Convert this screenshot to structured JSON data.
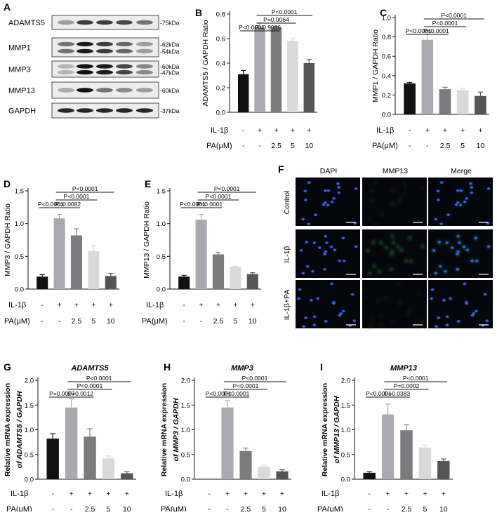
{
  "treatment_rows": {
    "il1b_label": "IL-1β",
    "pa_label": "PA(μM)",
    "il1b_values": [
      "-",
      "+",
      "+",
      "+",
      "+"
    ],
    "pa_values": [
      "-",
      "-",
      "2.5",
      "5",
      "10"
    ]
  },
  "bar_colors": [
    "#111111",
    "#a9aab0",
    "#7b7b7d",
    "#d9d9d9",
    "#555555"
  ],
  "panel_A": {
    "letter": "A",
    "rows": [
      {
        "name": "ADAMTS5",
        "kda": [
          "-75kDa"
        ]
      },
      {
        "name": "MMP1",
        "kda": [
          "-62kDa",
          "-54kDa"
        ]
      },
      {
        "name": "MMP3",
        "kda": [
          "-60kDa",
          "-47kDa"
        ]
      },
      {
        "name": "MMP13",
        "kda": [
          "-60kDa"
        ]
      },
      {
        "name": "GAPDH",
        "kda": [
          "-37kDa"
        ]
      }
    ]
  },
  "panel_F": {
    "letter": "F",
    "columns": [
      "DAPI",
      "MMP13",
      "Merge"
    ],
    "rows": [
      "Control",
      "IL-1β",
      "IL-1β+PA"
    ]
  },
  "chart_data": [
    {
      "id": "B",
      "type": "bar",
      "letter": "B",
      "title": "",
      "ylabel": "ADAMTS5 / GAPDH Ratio",
      "ylim": [
        0,
        0.8
      ],
      "yticks": [
        "0.0",
        "0.2",
        "0.4",
        "0.6",
        "0.8"
      ],
      "values": [
        0.31,
        0.69,
        0.69,
        0.58,
        0.4
      ],
      "errors": [
        0.03,
        0.04,
        0.01,
        0.02,
        0.03
      ],
      "comparisons": [
        {
          "label": "P<0.0001",
          "from": 0,
          "to": 1
        },
        {
          "label": "P=0.9986",
          "from": 1,
          "to": 2
        },
        {
          "label": "P=0.0064",
          "from": 1,
          "to": 3
        },
        {
          "label": "P<0.0001",
          "from": 1,
          "to": 4
        }
      ]
    },
    {
      "id": "C",
      "type": "bar",
      "letter": "C",
      "title": "",
      "ylabel": "MMP1 / GAPDH Ratio",
      "ylim": [
        0,
        1.0
      ],
      "yticks": [
        "0.0",
        "0.2",
        "0.4",
        "0.6",
        "0.8",
        "1.0"
      ],
      "values": [
        0.32,
        0.77,
        0.26,
        0.25,
        0.19
      ],
      "errors": [
        0.01,
        0.06,
        0.02,
        0.02,
        0.04
      ],
      "comparisons": [
        {
          "label": "P<0.0001",
          "from": 0,
          "to": 1
        },
        {
          "label": "P<0.0001",
          "from": 1,
          "to": 2
        },
        {
          "label": "P<0.0001",
          "from": 1,
          "to": 3
        },
        {
          "label": "P<0.0001",
          "from": 1,
          "to": 4
        }
      ]
    },
    {
      "id": "D",
      "type": "bar",
      "letter": "D",
      "title": "",
      "ylabel": "MMP3 / GAPDH Ratio",
      "ylim": [
        0,
        1.5
      ],
      "yticks": [
        "0.0",
        "0.5",
        "1.0",
        "1.5"
      ],
      "values": [
        0.19,
        1.08,
        0.82,
        0.58,
        0.2
      ],
      "errors": [
        0.03,
        0.06,
        0.1,
        0.08,
        0.04
      ],
      "comparisons": [
        {
          "label": "P<0.0001",
          "from": 0,
          "to": 1
        },
        {
          "label": "P=0.0082",
          "from": 1,
          "to": 2
        },
        {
          "label": "P<0.0001",
          "from": 1,
          "to": 3
        },
        {
          "label": "P<0.0001",
          "from": 1,
          "to": 4
        }
      ]
    },
    {
      "id": "E",
      "type": "bar",
      "letter": "E",
      "title": "",
      "ylabel": "MMP13 / GAPDH Ratio",
      "ylim": [
        0,
        1.5
      ],
      "yticks": [
        "0.0",
        "0.5",
        "1.0",
        "1.5"
      ],
      "values": [
        0.19,
        1.06,
        0.53,
        0.34,
        0.23
      ],
      "errors": [
        0.02,
        0.08,
        0.03,
        0.01,
        0.02
      ],
      "comparisons": [
        {
          "label": "P<0.0001",
          "from": 0,
          "to": 1
        },
        {
          "label": "P<0.0001",
          "from": 1,
          "to": 2
        },
        {
          "label": "P<0.0001",
          "from": 1,
          "to": 3
        },
        {
          "label": "P<0.0001",
          "from": 1,
          "to": 4
        }
      ]
    },
    {
      "id": "G",
      "type": "bar",
      "letter": "G",
      "title": "ADAMTS5",
      "ylabel": [
        "Relative mRNA expression",
        "of ADAMTS5 / GAPDH"
      ],
      "ylim": [
        0,
        2.0
      ],
      "yticks": [
        "0.0",
        "0.5",
        "1.0",
        "1.5",
        "2.0"
      ],
      "values": [
        0.82,
        1.45,
        0.86,
        0.42,
        0.12
      ],
      "errors": [
        0.1,
        0.18,
        0.16,
        0.05,
        0.03
      ],
      "comparisons": [
        {
          "label": "P=0.0007",
          "from": 0,
          "to": 1
        },
        {
          "label": "P=0.0012",
          "from": 1,
          "to": 2
        },
        {
          "label": "P<0.0001",
          "from": 1,
          "to": 3
        },
        {
          "label": "P<0.0001",
          "from": 1,
          "to": 4
        }
      ]
    },
    {
      "id": "H",
      "type": "bar",
      "letter": "H",
      "title": "MMP3",
      "ylabel": [
        "Relative mRNA expression",
        "of MMP3 / GAPDH"
      ],
      "ylim": [
        0,
        2.0
      ],
      "yticks": [
        "0.0",
        "0.5",
        "1.0",
        "1.5",
        "2.0"
      ],
      "values": [
        0.0,
        1.45,
        0.57,
        0.25,
        0.16
      ],
      "errors": [
        0.0,
        0.14,
        0.06,
        0.03,
        0.03
      ],
      "comparisons": [
        {
          "label": "P<0.0001",
          "from": 0,
          "to": 1
        },
        {
          "label": "P<0.0001",
          "from": 1,
          "to": 2
        },
        {
          "label": "P<0.0001",
          "from": 1,
          "to": 3
        },
        {
          "label": "P<0.0001",
          "from": 1,
          "to": 4
        }
      ]
    },
    {
      "id": "I",
      "type": "bar",
      "letter": "I",
      "title": "MMP13",
      "ylabel": [
        "Relative mRNA expression",
        "of MMP13 / GAPDH"
      ],
      "ylim": [
        0,
        2.0
      ],
      "yticks": [
        "0.0",
        "0.5",
        "1.0",
        "1.5",
        "2.0"
      ],
      "values": [
        0.13,
        1.31,
        0.99,
        0.64,
        0.37
      ],
      "errors": [
        0.02,
        0.21,
        0.11,
        0.05,
        0.04
      ],
      "comparisons": [
        {
          "label": "P<0.0001",
          "from": 0,
          "to": 1
        },
        {
          "label": "P=0.0383",
          "from": 1,
          "to": 2
        },
        {
          "label": "P=0.0002",
          "from": 1,
          "to": 3
        },
        {
          "label": "P<0.0001",
          "from": 1,
          "to": 4
        }
      ]
    }
  ]
}
